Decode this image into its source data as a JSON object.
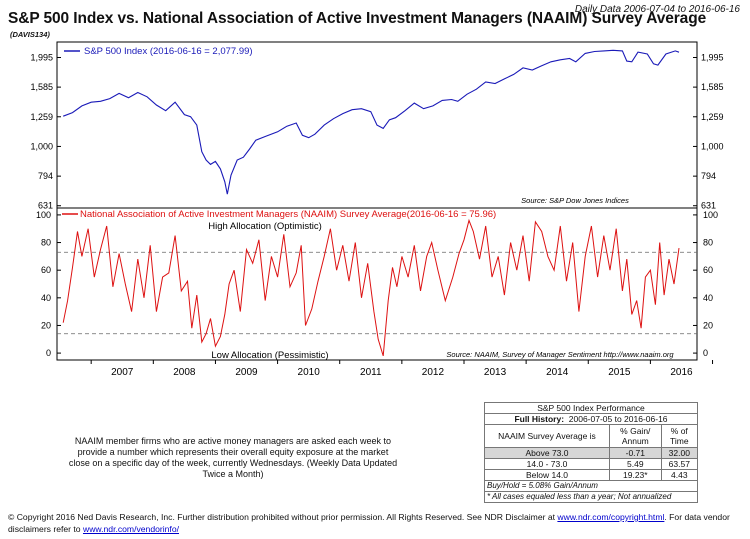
{
  "header": {
    "title": "S&P 500 Index vs. National Association of Active Investment Managers (NAAIM) Survey Average",
    "code": "(DAVIS134)",
    "date_range": "Daily Data 2006-07-04 to 2016-06-16"
  },
  "colors": {
    "spx": "#1a1ab8",
    "naaim": "#dd1111",
    "ref": "#666666"
  },
  "chart_data": [
    {
      "type": "line",
      "name": "spx-panel",
      "series": [
        {
          "name": "S&P 500 Index (2016-06-16 = 2,077.99)"
        }
      ],
      "x": [
        2006.55,
        2006.7,
        2006.85,
        2007.0,
        2007.15,
        2007.3,
        2007.45,
        2007.6,
        2007.75,
        2007.9,
        2008.05,
        2008.2,
        2008.35,
        2008.5,
        2008.6,
        2008.7,
        2008.78,
        2008.85,
        2008.92,
        2009.0,
        2009.08,
        2009.15,
        2009.19,
        2009.25,
        2009.35,
        2009.45,
        2009.55,
        2009.65,
        2009.8,
        2010.0,
        2010.15,
        2010.3,
        2010.4,
        2010.5,
        2010.6,
        2010.75,
        2010.9,
        2011.05,
        2011.2,
        2011.35,
        2011.5,
        2011.6,
        2011.7,
        2011.8,
        2011.9,
        2012.05,
        2012.2,
        2012.35,
        2012.5,
        2012.65,
        2012.8,
        2012.9,
        2013.05,
        2013.2,
        2013.35,
        2013.5,
        2013.65,
        2013.8,
        2013.95,
        2014.1,
        2014.25,
        2014.4,
        2014.55,
        2014.7,
        2014.8,
        2014.95,
        2015.1,
        2015.25,
        2015.4,
        2015.55,
        2015.62,
        2015.7,
        2015.8,
        2015.95,
        2016.05,
        2016.12,
        2016.25,
        2016.4,
        2016.46
      ],
      "values": [
        1265,
        1300,
        1370,
        1410,
        1420,
        1450,
        1510,
        1460,
        1520,
        1470,
        1380,
        1320,
        1410,
        1280,
        1260,
        1180,
        960,
        900,
        870,
        890,
        840,
        760,
        690,
        800,
        900,
        920,
        980,
        1050,
        1080,
        1120,
        1170,
        1200,
        1090,
        1070,
        1100,
        1180,
        1240,
        1290,
        1330,
        1340,
        1310,
        1180,
        1150,
        1230,
        1250,
        1320,
        1400,
        1340,
        1370,
        1430,
        1440,
        1420,
        1500,
        1560,
        1650,
        1630,
        1690,
        1750,
        1840,
        1810,
        1870,
        1930,
        1960,
        1980,
        1930,
        2060,
        2090,
        2100,
        2110,
        2100,
        1940,
        1930,
        2080,
        2050,
        1900,
        1880,
        2050,
        2100,
        2078
      ],
      "xlim": [
        2006.45,
        2016.75
      ],
      "ylim": [
        620,
        2250
      ],
      "yscale": "log",
      "yticks": [
        631,
        794,
        1000,
        1259,
        1585,
        1995
      ],
      "ytick_labels": [
        "631",
        "794",
        "1,000",
        "1,259",
        "1,585",
        "1,995"
      ],
      "source": "Source:   S&P Dow Jones Indices"
    },
    {
      "type": "line",
      "name": "naaim-panel",
      "series": [
        {
          "name": "National Association of Active Investment Managers (NAAIM) Survey Average(2016-06-16 = 75.96)"
        }
      ],
      "x": [
        2006.55,
        2006.62,
        2006.7,
        2006.78,
        2006.85,
        2006.95,
        2007.05,
        2007.15,
        2007.25,
        2007.35,
        2007.45,
        2007.55,
        2007.65,
        2007.75,
        2007.85,
        2007.95,
        2008.05,
        2008.15,
        2008.25,
        2008.35,
        2008.45,
        2008.55,
        2008.62,
        2008.7,
        2008.78,
        2008.85,
        2008.92,
        2009.0,
        2009.08,
        2009.15,
        2009.22,
        2009.3,
        2009.4,
        2009.5,
        2009.6,
        2009.7,
        2009.8,
        2009.9,
        2010.0,
        2010.1,
        2010.2,
        2010.3,
        2010.38,
        2010.45,
        2010.55,
        2010.65,
        2010.75,
        2010.85,
        2010.95,
        2011.05,
        2011.15,
        2011.25,
        2011.35,
        2011.45,
        2011.55,
        2011.62,
        2011.7,
        2011.78,
        2011.85,
        2011.92,
        2012.0,
        2012.1,
        2012.2,
        2012.3,
        2012.4,
        2012.48,
        2012.58,
        2012.7,
        2012.82,
        2012.92,
        2013.0,
        2013.08,
        2013.15,
        2013.25,
        2013.35,
        2013.45,
        2013.55,
        2013.65,
        2013.75,
        2013.85,
        2013.95,
        2014.05,
        2014.15,
        2014.25,
        2014.35,
        2014.45,
        2014.55,
        2014.65,
        2014.75,
        2014.85,
        2014.95,
        2015.05,
        2015.15,
        2015.25,
        2015.35,
        2015.45,
        2015.55,
        2015.62,
        2015.7,
        2015.78,
        2015.85,
        2015.92,
        2016.0,
        2016.08,
        2016.15,
        2016.22,
        2016.3,
        2016.38,
        2016.46
      ],
      "values": [
        22,
        38,
        62,
        88,
        70,
        90,
        55,
        75,
        92,
        48,
        72,
        50,
        30,
        68,
        40,
        78,
        30,
        55,
        58,
        85,
        45,
        52,
        18,
        42,
        8,
        14,
        25,
        5,
        12,
        28,
        50,
        60,
        30,
        75,
        65,
        82,
        38,
        70,
        55,
        86,
        48,
        58,
        78,
        20,
        32,
        52,
        70,
        90,
        60,
        78,
        52,
        80,
        40,
        65,
        30,
        10,
        -2,
        38,
        62,
        48,
        70,
        55,
        78,
        45,
        70,
        80,
        60,
        38,
        55,
        72,
        82,
        96,
        88,
        68,
        92,
        55,
        70,
        42,
        80,
        60,
        85,
        52,
        95,
        88,
        70,
        60,
        92,
        52,
        80,
        30,
        70,
        92,
        55,
        85,
        60,
        90,
        45,
        68,
        28,
        38,
        18,
        55,
        60,
        35,
        80,
        42,
        68,
        50,
        76
      ],
      "xlim": [
        2006.45,
        2016.75
      ],
      "ylim": [
        -5,
        105
      ],
      "yticks": [
        0,
        20,
        40,
        60,
        80,
        100
      ],
      "ytick_labels": [
        "0",
        "20",
        "40",
        "60",
        "80",
        "100"
      ],
      "ref_lines": [
        73.0,
        14.0
      ],
      "annotations": {
        "high": "High Allocation (Optimistic)",
        "low": "Low Allocation (Pessimistic)"
      },
      "source": "Source:   NAAIM, Survey of Manager Sentiment http://www.naaim.org",
      "xticks": [
        2007,
        2008,
        2009,
        2010,
        2011,
        2012,
        2013,
        2014,
        2015,
        2016
      ],
      "xtick_labels": [
        "2007",
        "2008",
        "2009",
        "2010",
        "2011",
        "2012",
        "2013",
        "2014",
        "2015",
        "2016"
      ]
    }
  ],
  "notes": "NAAIM member firms who are active money managers are asked each week to provide a number which represents their overall equity exposure at the market close on a specific day of the week, currently Wednesdays. (Weekly Data Updated Twice a Month)",
  "performance": {
    "title": "S&P 500 Index Performance",
    "history_label": "Full History:",
    "history_range": "2006-07-05 to 2016-06-16",
    "col1": "NAAIM Survey Average is",
    "col2": "% Gain/ Annum",
    "col3": "% of Time",
    "rows": [
      {
        "label": "Above 73.0",
        "gain": "-0.71",
        "time": "32.00"
      },
      {
        "label": "14.0 - 73.0",
        "gain": "5.49",
        "time": "63.57"
      },
      {
        "label": "Below 14.0",
        "gain": "19.23*",
        "time": "4.43"
      }
    ],
    "buyhold": "Buy/Hold = 5.08% Gain/Annum",
    "footnote": "* All cases equaled less than a year; Not annualized"
  },
  "footer": {
    "text1": "© Copyright 2016 Ned Davis Research, Inc. Further distribution prohibited without prior permission. All Rights Reserved. See NDR Disclaimer at ",
    "link1": "www.ndr.com/copyright.html",
    "text2": ". For data vendor disclaimers refer to ",
    "link2": "www.ndr.com/vendorinfo/"
  }
}
